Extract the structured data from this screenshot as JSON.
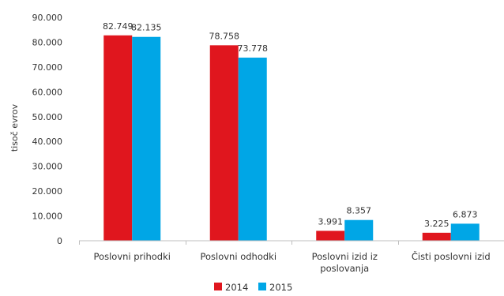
{
  "chart_data": {
    "type": "bar",
    "ylabel": "tisoč evrov",
    "xlabel": "",
    "ylim": [
      0,
      90000
    ],
    "y_ticks": [
      0,
      10000,
      20000,
      30000,
      40000,
      50000,
      60000,
      70000,
      80000,
      90000
    ],
    "y_tick_labels": [
      "0",
      "10.000",
      "20.000",
      "30.000",
      "40.000",
      "50.000",
      "60.000",
      "70.000",
      "80.000",
      "90.000"
    ],
    "categories": [
      [
        "Poslovni prihodki"
      ],
      [
        "Poslovni odhodki"
      ],
      [
        "Poslovni izid iz",
        "poslovanja"
      ],
      [
        "Čisti poslovni izid"
      ]
    ],
    "series": [
      {
        "name": "2014",
        "color": "#e0161e",
        "values": [
          82749,
          78758,
          3991,
          3225
        ],
        "labels": [
          "82.749",
          "78.758",
          "3.991",
          "3.225"
        ]
      },
      {
        "name": "2015",
        "color": "#00a6e6",
        "values": [
          82135,
          73778,
          8357,
          6873
        ],
        "labels": [
          "82.135",
          "73.778",
          "8.357",
          "6.873"
        ]
      }
    ],
    "grid": false,
    "legend_position": "bottom-center"
  }
}
